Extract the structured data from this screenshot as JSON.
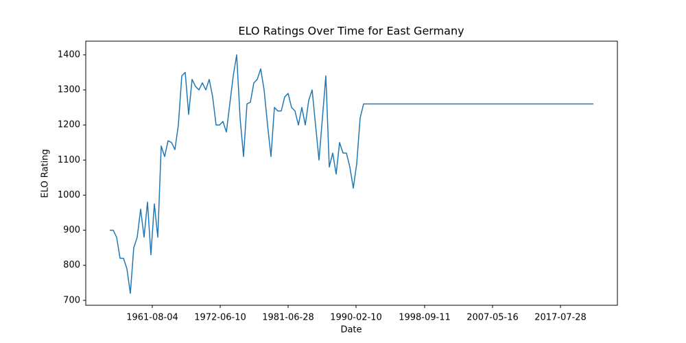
{
  "chart_data": {
    "type": "line",
    "title": "ELO Ratings Over Time for East Germany",
    "x_label": "Date",
    "y_label": "ELO Rating",
    "series": [
      {
        "name": "ELO Rating",
        "color": "#1f77b4",
        "values": [
          900,
          900,
          880,
          820,
          820,
          790,
          720,
          850,
          880,
          960,
          880,
          980,
          830,
          975,
          880,
          1140,
          1110,
          1155,
          1150,
          1130,
          1200,
          1340,
          1350,
          1230,
          1330,
          1310,
          1300,
          1320,
          1300,
          1330,
          1280,
          1200,
          1200,
          1210,
          1180,
          1260,
          1340,
          1400,
          1220,
          1110,
          1260,
          1265,
          1320,
          1330,
          1360,
          1300,
          1200,
          1110,
          1250,
          1240,
          1240,
          1280,
          1290,
          1250,
          1240,
          1200,
          1250,
          1200,
          1270,
          1300,
          1200,
          1100,
          1220,
          1340,
          1080,
          1120,
          1060,
          1150,
          1120,
          1120,
          1080,
          1020,
          1090,
          1220,
          1260,
          1260,
          1260,
          1260,
          1260,
          1260,
          1260,
          1260,
          1260,
          1260,
          1260,
          1260,
          1260,
          1260,
          1260,
          1260,
          1260,
          1260,
          1260,
          1260,
          1260,
          1260,
          1260,
          1260,
          1260,
          1260,
          1260,
          1260,
          1260,
          1260,
          1260,
          1260,
          1260,
          1260,
          1260,
          1260,
          1260,
          1260,
          1260,
          1260,
          1260,
          1260,
          1260,
          1260,
          1260,
          1260,
          1260,
          1260,
          1260,
          1260,
          1260,
          1260,
          1260,
          1260,
          1260,
          1260,
          1260,
          1260,
          1260,
          1260,
          1260,
          1260,
          1260,
          1260,
          1260,
          1260,
          1260,
          1260
        ]
      }
    ],
    "xlim": [
      -7,
      148
    ],
    "xticks": [
      {
        "value": 12.4,
        "label": "1961-08-04"
      },
      {
        "value": 32.2,
        "label": "1972-06-10"
      },
      {
        "value": 52,
        "label": "1981-06-28"
      },
      {
        "value": 71.8,
        "label": "1990-02-10"
      },
      {
        "value": 91.8,
        "label": "1998-09-11"
      },
      {
        "value": 111.6,
        "label": "2007-05-16"
      },
      {
        "value": 131.4,
        "label": "2017-07-28"
      }
    ],
    "ylim": [
      686,
      1439
    ],
    "yticks": [
      700,
      800,
      900,
      1000,
      1100,
      1200,
      1300,
      1400
    ]
  }
}
